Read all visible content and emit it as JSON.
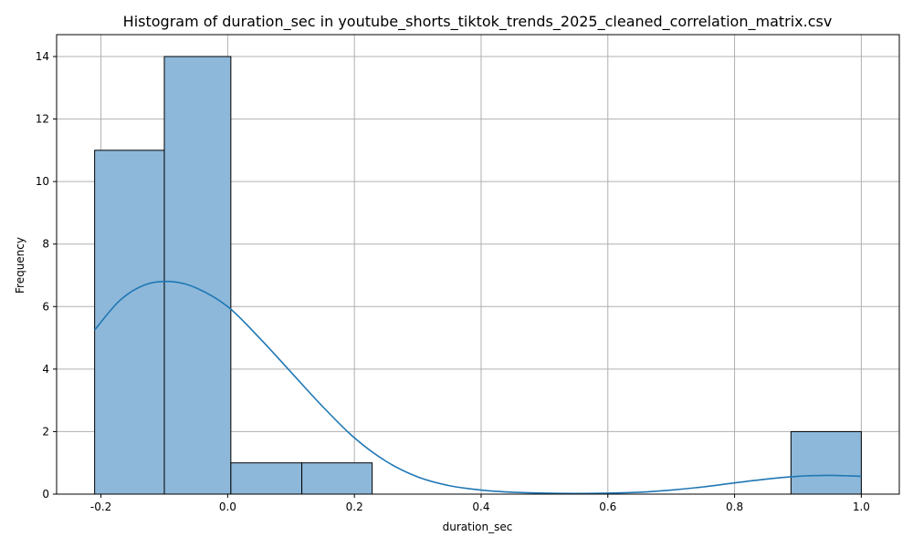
{
  "chart_data": {
    "type": "bar",
    "title": "Histogram of duration_sec in youtube_shorts_tiktok_trends_2025_cleaned_correlation_matrix.csv",
    "xlabel": "duration_sec",
    "ylabel": "Frequency",
    "xlim": [
      -0.27,
      1.06
    ],
    "ylim": [
      0,
      14.7
    ],
    "x_ticks": [
      "-0.2",
      "0.0",
      "0.2",
      "0.4",
      "0.6",
      "0.8",
      "1.0"
    ],
    "y_ticks": [
      "0",
      "2",
      "4",
      "6",
      "8",
      "10",
      "12",
      "14"
    ],
    "grid": true,
    "bins": [
      {
        "start": -0.21,
        "end": -0.1,
        "count": 11
      },
      {
        "start": -0.1,
        "end": 0.005,
        "count": 14
      },
      {
        "start": 0.005,
        "end": 0.117,
        "count": 1
      },
      {
        "start": 0.117,
        "end": 0.228,
        "count": 1
      },
      {
        "start": 0.228,
        "end": 0.339,
        "count": 0
      },
      {
        "start": 0.339,
        "end": 0.45,
        "count": 0
      },
      {
        "start": 0.45,
        "end": 0.561,
        "count": 0
      },
      {
        "start": 0.561,
        "end": 0.672,
        "count": 0
      },
      {
        "start": 0.672,
        "end": 0.783,
        "count": 0
      },
      {
        "start": 0.783,
        "end": 0.889,
        "count": 0
      },
      {
        "start": 0.889,
        "end": 1.0,
        "count": 2
      }
    ],
    "kde": {
      "x": [
        -0.21,
        -0.17,
        -0.13,
        -0.09,
        -0.05,
        0.0,
        0.05,
        0.1,
        0.15,
        0.2,
        0.25,
        0.3,
        0.35,
        0.4,
        0.45,
        0.5,
        0.55,
        0.6,
        0.65,
        0.7,
        0.75,
        0.8,
        0.85,
        0.9,
        0.95,
        1.0
      ],
      "y": [
        5.25,
        6.2,
        6.7,
        6.8,
        6.6,
        6.0,
        5.0,
        3.9,
        2.8,
        1.8,
        1.05,
        0.55,
        0.27,
        0.13,
        0.06,
        0.03,
        0.02,
        0.03,
        0.06,
        0.13,
        0.23,
        0.36,
        0.48,
        0.57,
        0.6,
        0.57
      ]
    },
    "colors": {
      "bar_fill": "#8db8da",
      "bar_edge": "#000000",
      "kde_line": "#1f77b4",
      "grid": "#b0b0b0"
    }
  }
}
